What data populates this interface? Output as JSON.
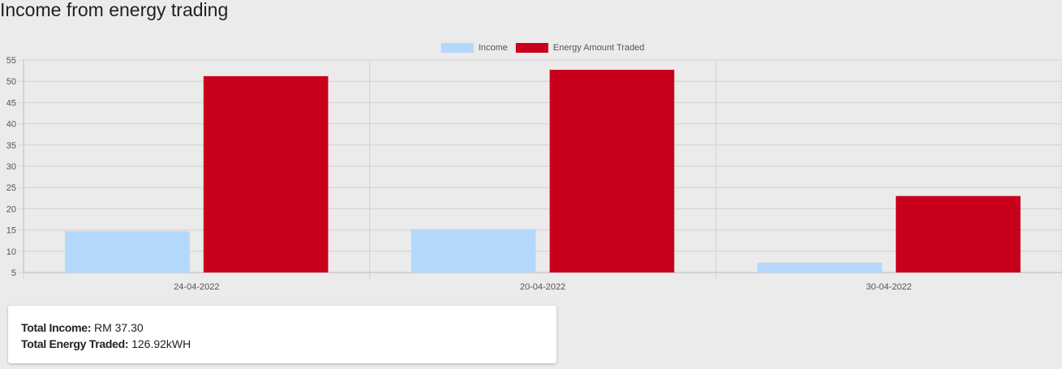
{
  "page": {
    "title": "Income from energy trading"
  },
  "chart_data": {
    "type": "bar",
    "title": "",
    "xlabel": "",
    "ylabel": "",
    "categories": [
      "24-04-2022",
      "20-04-2022",
      "30-04-2022"
    ],
    "series": [
      {
        "name": "Income",
        "values": [
          14.7,
          15.2,
          7.3
        ],
        "color": "#b3d8fc"
      },
      {
        "name": "Energy Amount Traded",
        "values": [
          51.2,
          52.7,
          23.0
        ],
        "color": "#c8001b"
      }
    ],
    "ylim": [
      5,
      55
    ],
    "yticks": [
      5,
      10,
      15,
      20,
      25,
      30,
      35,
      40,
      45,
      50,
      55
    ],
    "grid": true,
    "legend_position": "top-center"
  },
  "summary": {
    "income_label": "Total Income:",
    "income_value": "RM 37.30",
    "energy_label": "Total Energy Traded:",
    "energy_value": "126.92kWH"
  }
}
